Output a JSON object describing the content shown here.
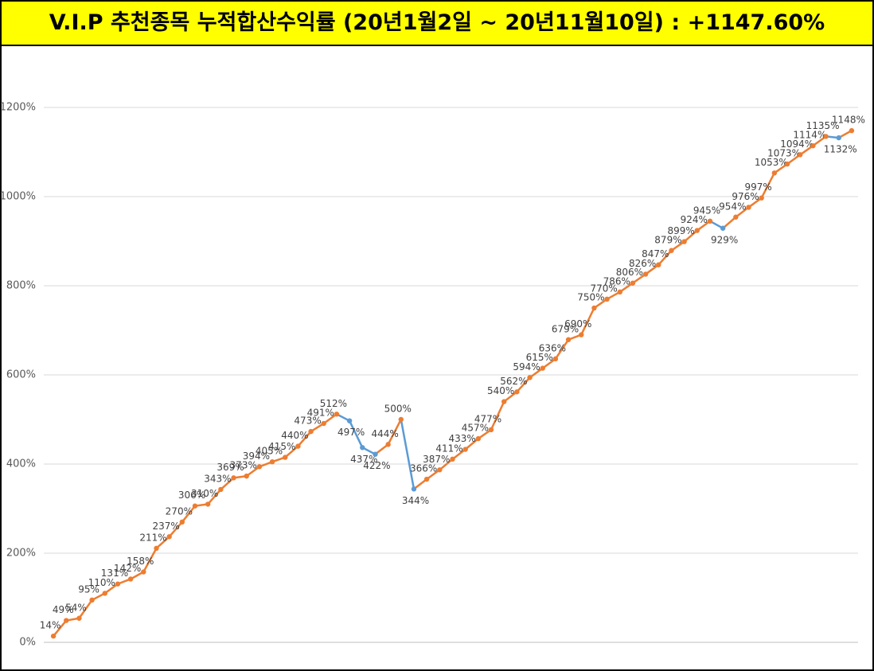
{
  "chart_data": {
    "type": "line",
    "title": "V.I.P 추천종목 누적합산수익률 (20년1월2일 ~ 20년11월10일) : +1147.60%",
    "categories": [
      null,
      null,
      null,
      null,
      null,
      null,
      null,
      null,
      null,
      null,
      null,
      null,
      null,
      null,
      null,
      null,
      null,
      null,
      null,
      null,
      null,
      null,
      null,
      null,
      null,
      null,
      null,
      null,
      null,
      null,
      null,
      null,
      null,
      null,
      null,
      null,
      null,
      null,
      null,
      null,
      null,
      null,
      null,
      null,
      null,
      null,
      null,
      null,
      null,
      null,
      null,
      null,
      null,
      null,
      null,
      null,
      null,
      null,
      null,
      null,
      null,
      null,
      null
    ],
    "values": [
      14,
      49,
      54,
      95,
      110,
      131,
      142,
      158,
      211,
      237,
      270,
      306,
      310,
      343,
      369,
      373,
      394,
      405,
      415,
      440,
      473,
      491,
      512,
      497,
      437,
      422,
      444,
      500,
      344,
      366,
      387,
      411,
      433,
      457,
      477,
      540,
      562,
      594,
      615,
      636,
      679,
      690,
      750,
      770,
      786,
      806,
      826,
      847,
      879,
      899,
      924,
      945,
      929,
      954,
      976,
      997,
      1053,
      1073,
      1094,
      1114,
      1135,
      1132,
      1148
    ],
    "value_labels": [
      "14%",
      "49%",
      "54%",
      "95%",
      "110%",
      "131%",
      "142%",
      "158%",
      "211%",
      "237%",
      "270%",
      "306%",
      "310%",
      "343%",
      "369%",
      "373%",
      "394%",
      "405%",
      "415%",
      "440%",
      "473%",
      "491%",
      "512%",
      "497%",
      "437%",
      "422%",
      "444%",
      "500%",
      "344%",
      "366%",
      "387%",
      "411%",
      "433%",
      "457%",
      "477%",
      "540%",
      "562%",
      "594%",
      "615%",
      "636%",
      "679%",
      "690%",
      "750%",
      "770%",
      "786%",
      "806%",
      "826%",
      "847%",
      "879%",
      "899%",
      "924%",
      "945%",
      "929%",
      "954%",
      "976%",
      "997%",
      "1053%",
      "1073%",
      "1094%",
      "1114%",
      "1135%",
      "1132%",
      "1148%"
    ],
    "color": "#ed7d31",
    "decline_color": "#5b9bd5",
    "ylim": [
      0,
      1300
    ],
    "yticks": [
      {
        "value": 0,
        "label": "0%"
      },
      {
        "value": 200,
        "label": "200%"
      },
      {
        "value": 400,
        "label": "400%"
      },
      {
        "value": 600,
        "label": "600%"
      },
      {
        "value": 800,
        "label": "800%"
      },
      {
        "value": 1000,
        "label": "1000%"
      },
      {
        "value": 1200,
        "label": "1200%"
      }
    ],
    "grid": true
  }
}
